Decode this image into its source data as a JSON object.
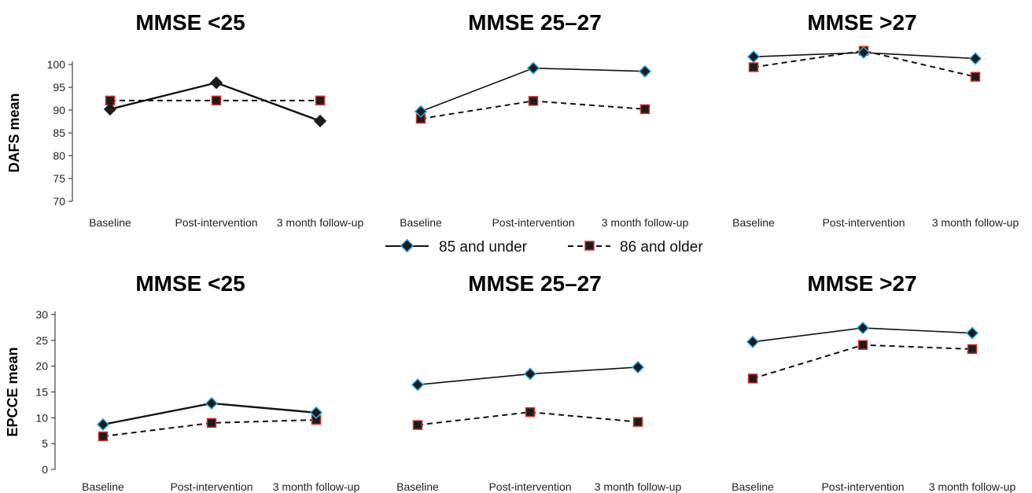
{
  "legend": {
    "series_a": "85 and under",
    "series_b": "86 and older"
  },
  "colors": {
    "series_a_marker_fill": "#1c1c1c",
    "series_a_marker_edge": "#29a8e0",
    "series_b_marker_fill": "#1c1c1c",
    "series_b_marker_edge": "#d0312d",
    "line": "#111111"
  },
  "chart_data": [
    {
      "type": "line",
      "ylabel": "DAFS mean",
      "ylim": [
        70,
        100
      ],
      "yticks": [
        70,
        75,
        80,
        85,
        90,
        95,
        100
      ],
      "categories": [
        "Baseline",
        "Post-intervention",
        "3 month follow-up"
      ],
      "panels": [
        {
          "title": "MMSE <25",
          "series": [
            {
              "name": "85 and under",
              "values": [
                90.2,
                96.0,
                87.6
              ]
            },
            {
              "name": "86 and older",
              "values": [
                92.1,
                92.1,
                92.1
              ]
            }
          ]
        },
        {
          "title": "MMSE 25–27",
          "series": [
            {
              "name": "85 and under",
              "values": [
                89.7,
                99.2,
                98.5
              ]
            },
            {
              "name": "86 and older",
              "values": [
                88.1,
                92.0,
                90.2
              ]
            }
          ]
        },
        {
          "title": "MMSE >27",
          "series": [
            {
              "name": "85 and under",
              "values": [
                101.7,
                102.6,
                101.3
              ]
            },
            {
              "name": "86 and older",
              "values": [
                99.4,
                103.0,
                97.3
              ]
            }
          ]
        }
      ]
    },
    {
      "type": "line",
      "ylabel": "EPCCE mean",
      "ylim": [
        0,
        30
      ],
      "yticks": [
        0,
        5,
        10,
        15,
        20,
        25,
        30
      ],
      "categories": [
        "Baseline",
        "Post-intervention",
        "3 month follow-up"
      ],
      "panels": [
        {
          "title": "MMSE <25",
          "series": [
            {
              "name": "85 and under",
              "values": [
                8.7,
                12.8,
                11.0
              ]
            },
            {
              "name": "86 and older",
              "values": [
                6.4,
                9.0,
                9.6
              ]
            }
          ]
        },
        {
          "title": "MMSE 25–27",
          "series": [
            {
              "name": "85 and under",
              "values": [
                16.4,
                18.5,
                19.8
              ]
            },
            {
              "name": "86 and older",
              "values": [
                8.6,
                11.1,
                9.2
              ]
            }
          ]
        },
        {
          "title": "MMSE >27",
          "series": [
            {
              "name": "85 and under",
              "values": [
                24.7,
                27.4,
                26.4
              ]
            },
            {
              "name": "86 and older",
              "values": [
                17.6,
                24.1,
                23.3
              ]
            }
          ]
        }
      ]
    }
  ]
}
